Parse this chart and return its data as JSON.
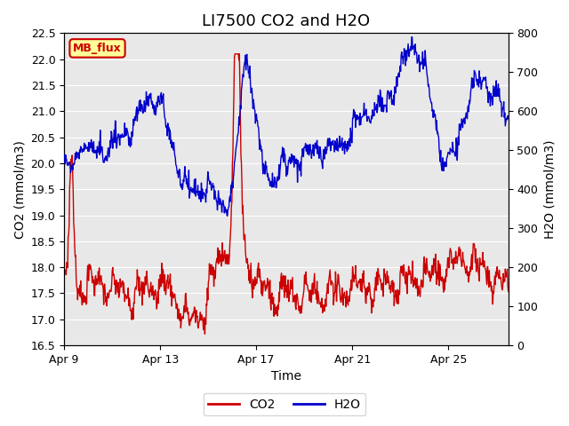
{
  "title": "LI7500 CO2 and H2O",
  "xlabel": "Time",
  "ylabel_left": "CO2 (mmol/m3)",
  "ylabel_right": "H2O (mmol/m3)",
  "ylim_left": [
    16.5,
    22.5
  ],
  "ylim_right": [
    0,
    800
  ],
  "yticks_left": [
    16.5,
    17.0,
    17.5,
    18.0,
    18.5,
    19.0,
    19.5,
    20.0,
    20.5,
    21.0,
    21.5,
    22.0,
    22.5
  ],
  "yticks_right": [
    0,
    100,
    200,
    300,
    400,
    500,
    600,
    700,
    800
  ],
  "xtick_labels": [
    "Apr 9",
    "Apr 13",
    "Apr 17",
    "Apr 21",
    "Apr 25"
  ],
  "xtick_positions": [
    0,
    4,
    8,
    12,
    16
  ],
  "xlim": [
    0,
    18.5
  ],
  "co2_color": "#cc0000",
  "h2o_color": "#0000cc",
  "plot_bg_color": "#e8e8e8",
  "grid_color": "#ffffff",
  "legend_label_co2": "CO2",
  "legend_label_h2o": "H2O",
  "annotation_text": "MB_flux",
  "annotation_bg": "#ffff99",
  "annotation_border": "#cc0000",
  "title_fontsize": 13,
  "label_fontsize": 10,
  "tick_fontsize": 9,
  "legend_fontsize": 10,
  "linewidth": 1.0
}
